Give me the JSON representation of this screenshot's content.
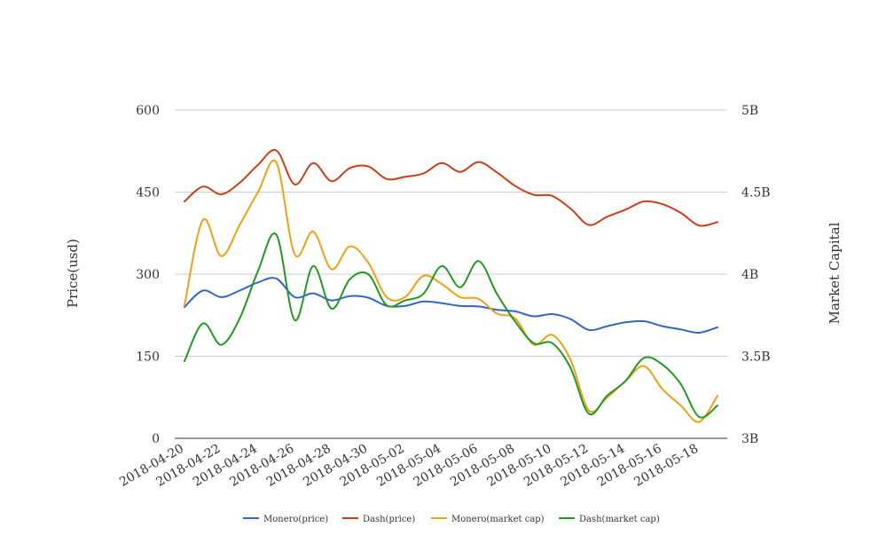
{
  "chart_data": {
    "type": "line",
    "x": [
      "2018-04-20",
      "2018-04-21",
      "2018-04-22",
      "2018-04-23",
      "2018-04-24",
      "2018-04-25",
      "2018-04-26",
      "2018-04-27",
      "2018-04-28",
      "2018-04-29",
      "2018-04-30",
      "2018-05-01",
      "2018-05-02",
      "2018-05-03",
      "2018-05-04",
      "2018-05-05",
      "2018-05-06",
      "2018-05-07",
      "2018-05-08",
      "2018-05-09",
      "2018-05-10",
      "2018-05-11",
      "2018-05-12",
      "2018-05-13",
      "2018-05-14",
      "2018-05-15",
      "2018-05-16",
      "2018-05-17",
      "2018-05-18",
      "2018-05-19"
    ],
    "x_tick_labels": [
      "2018-04-20",
      "2018-04-22",
      "2018-04-24",
      "2018-04-26",
      "2018-04-28",
      "2018-04-30",
      "2018-05-02",
      "2018-05-04",
      "2018-05-06",
      "2018-05-08",
      "2018-05-10",
      "2018-05-12",
      "2018-05-14",
      "2018-05-16",
      "2018-05-18"
    ],
    "ylabel": "Price(usd)",
    "y2label": "Market Capital",
    "ylim": [
      0,
      600
    ],
    "y2lim": [
      3000000000,
      5000000000
    ],
    "y_ticks": [
      "0",
      "150",
      "300",
      "450",
      "600"
    ],
    "y2_ticks": [
      "3B",
      "3.5B",
      "4B",
      "4.5B",
      "5B"
    ],
    "grid": true,
    "legend_position": "bottom-center",
    "series": [
      {
        "name": "Monero(price)",
        "axis": "left",
        "color": "#3366cc",
        "values": [
          240,
          270,
          258,
          270,
          285,
          292,
          258,
          265,
          252,
          260,
          257,
          242,
          242,
          250,
          247,
          242,
          241,
          235,
          232,
          223,
          227,
          218,
          198,
          205,
          212,
          214,
          205,
          199,
          193,
          203
        ]
      },
      {
        "name": "Dash(price)",
        "axis": "left",
        "color": "#cc3d1a",
        "values": [
          433,
          460,
          446,
          467,
          500,
          526,
          464,
          503,
          470,
          494,
          497,
          474,
          478,
          484,
          503,
          487,
          505,
          486,
          461,
          445,
          443,
          420,
          390,
          405,
          418,
          433,
          428,
          412,
          389,
          395
        ]
      },
      {
        "name": "Monero(market cap)",
        "axis": "right",
        "color": "#f0a016",
        "values": [
          3810000000,
          4330000000,
          4110000000,
          4300000000,
          4500000000,
          4680000000,
          4120000000,
          4260000000,
          4030000000,
          4170000000,
          4070000000,
          3860000000,
          3860000000,
          3990000000,
          3940000000,
          3860000000,
          3850000000,
          3760000000,
          3730000000,
          3570000000,
          3630000000,
          3480000000,
          3170000000,
          3250000000,
          3350000000,
          3440000000,
          3300000000,
          3200000000,
          3100000000,
          3260000000
        ]
      },
      {
        "name": "Dash(market cap)",
        "axis": "right",
        "color": "#229922",
        "values": [
          3470000000,
          3700000000,
          3570000000,
          3730000000,
          4020000000,
          4240000000,
          3720000000,
          4050000000,
          3790000000,
          3970000000,
          4000000000,
          3810000000,
          3840000000,
          3880000000,
          4050000000,
          3920000000,
          4080000000,
          3880000000,
          3710000000,
          3580000000,
          3580000000,
          3430000000,
          3150000000,
          3260000000,
          3350000000,
          3490000000,
          3450000000,
          3330000000,
          3130000000,
          3200000000
        ]
      }
    ]
  }
}
